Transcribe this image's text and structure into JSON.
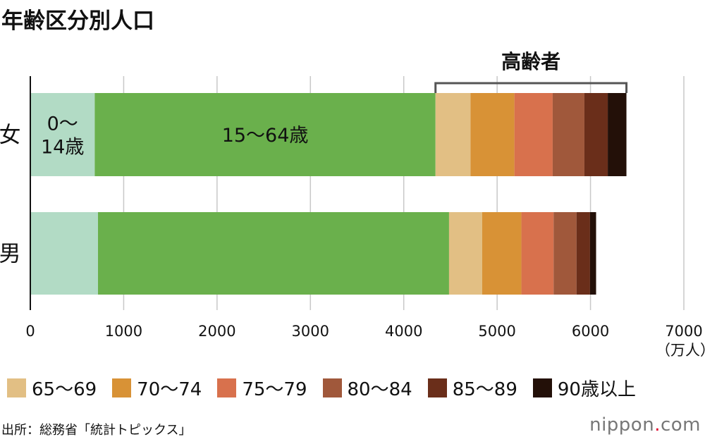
{
  "chart_data": {
    "type": "bar",
    "orientation": "horizontal",
    "stacked": true,
    "title": "年齢区分別人口",
    "categories": [
      "女",
      "男"
    ],
    "series": [
      {
        "name": "0〜14歳",
        "color": "#b2dbc5",
        "values": [
          690,
          725
        ]
      },
      {
        "name": "15〜64歳",
        "color": "#6ab04c",
        "values": [
          3650,
          3760
        ]
      },
      {
        "name": "65〜69",
        "color": "#e2bf84",
        "values": [
          375,
          355
        ]
      },
      {
        "name": "70〜74",
        "color": "#d89236",
        "values": [
          470,
          420
        ]
      },
      {
        "name": "75〜79",
        "color": "#d8714d",
        "values": [
          410,
          345
        ]
      },
      {
        "name": "80〜84",
        "color": "#a0583b",
        "values": [
          340,
          245
        ]
      },
      {
        "name": "85〜89",
        "color": "#6a2e1a",
        "values": [
          250,
          145
        ]
      },
      {
        "name": "90歳以上",
        "color": "#231008",
        "values": [
          200,
          65
        ]
      }
    ],
    "inline_labels": [
      {
        "series": "0〜14歳",
        "lines": [
          "0〜",
          "14歳"
        ]
      },
      {
        "series": "15〜64歳",
        "lines": [
          "15〜64歳"
        ]
      }
    ],
    "bracket_label": "高齢者",
    "xaxis": {
      "ticks": [
        0,
        1000,
        2000,
        3000,
        4000,
        5000,
        6000,
        7000
      ],
      "tick_labels": [
        "0",
        "1000",
        "2000",
        "3000",
        "4000",
        "5000",
        "6000",
        "7000"
      ],
      "unit": "（万人）",
      "range": [
        0,
        7000
      ]
    },
    "grid": true,
    "legend": {
      "position": "bottom",
      "items": [
        "65〜69",
        "70〜74",
        "75〜79",
        "80〜84",
        "85〜89",
        "90歳以上"
      ]
    }
  },
  "source": "出所：総務省「統計トピックス」",
  "brand": {
    "name": "nippon",
    "dot": ".",
    "tld": "com"
  }
}
